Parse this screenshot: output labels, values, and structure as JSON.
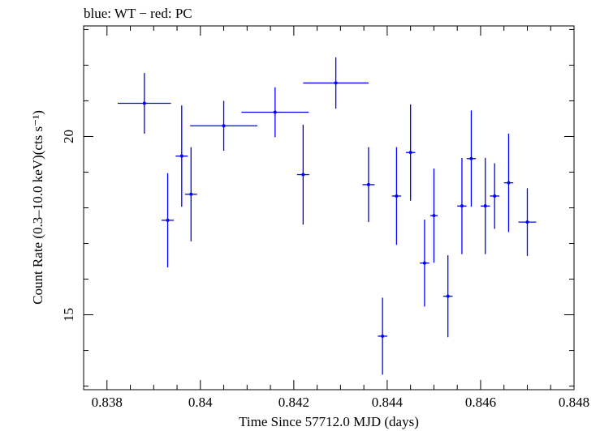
{
  "chart_data": {
    "type": "scatter",
    "title": "blue: WT − red: PC",
    "xlabel": "Time Since 57712.0 MJD (days)",
    "ylabel": "Count Rate (0.3–10.0 keV)(cts s⁻¹)",
    "xlim": [
      0.8375,
      0.848
    ],
    "ylim": [
      12.9,
      23.1
    ],
    "x_ticks": [
      0.838,
      0.84,
      0.842,
      0.844,
      0.846,
      0.848
    ],
    "x_tick_labels": [
      "0.838",
      "0.84",
      "0.842",
      "0.844",
      "0.846",
      "0.848"
    ],
    "y_ticks": [
      15,
      20
    ],
    "y_tick_labels": [
      "15",
      "20"
    ],
    "grid": false,
    "series": [
      {
        "color": "#0000ff",
        "points": [
          {
            "x": 0.8388,
            "y": 20.93,
            "xerr": 0.00057,
            "yerr": 0.85
          },
          {
            "x": 0.8393,
            "y": 17.65,
            "xerr": 0.00013,
            "yerr": 1.32
          },
          {
            "x": 0.8396,
            "y": 19.45,
            "xerr": 0.00013,
            "yerr": 1.42
          },
          {
            "x": 0.8398,
            "y": 18.38,
            "xerr": 0.00013,
            "yerr": 1.32
          },
          {
            "x": 0.8405,
            "y": 20.3,
            "xerr": 0.00072,
            "yerr": 0.7
          },
          {
            "x": 0.8416,
            "y": 20.68,
            "xerr": 0.00072,
            "yerr": 0.7
          },
          {
            "x": 0.8422,
            "y": 18.93,
            "xerr": 0.00013,
            "yerr": 1.4
          },
          {
            "x": 0.8429,
            "y": 21.5,
            "xerr": 0.0007,
            "yerr": 0.72
          },
          {
            "x": 0.8436,
            "y": 18.65,
            "xerr": 0.00013,
            "yerr": 1.05
          },
          {
            "x": 0.8439,
            "y": 14.4,
            "xerr": 0.0001,
            "yerr": 1.08
          },
          {
            "x": 0.8442,
            "y": 18.33,
            "xerr": 0.0001,
            "yerr": 1.37
          },
          {
            "x": 0.8445,
            "y": 19.55,
            "xerr": 0.0001,
            "yerr": 1.35
          },
          {
            "x": 0.8448,
            "y": 16.45,
            "xerr": 0.0001,
            "yerr": 1.22
          },
          {
            "x": 0.845,
            "y": 17.78,
            "xerr": 8e-05,
            "yerr": 1.32
          },
          {
            "x": 0.8453,
            "y": 15.52,
            "xerr": 0.0001,
            "yerr": 1.15
          },
          {
            "x": 0.8456,
            "y": 18.05,
            "xerr": 0.0001,
            "yerr": 1.35
          },
          {
            "x": 0.8458,
            "y": 19.38,
            "xerr": 0.0001,
            "yerr": 1.35
          },
          {
            "x": 0.8461,
            "y": 18.05,
            "xerr": 0.0001,
            "yerr": 1.35
          },
          {
            "x": 0.8463,
            "y": 18.33,
            "xerr": 0.0001,
            "yerr": 0.92
          },
          {
            "x": 0.8466,
            "y": 18.7,
            "xerr": 0.0001,
            "yerr": 1.38
          },
          {
            "x": 0.847,
            "y": 17.6,
            "xerr": 0.00019,
            "yerr": 0.95
          }
        ]
      }
    ]
  }
}
